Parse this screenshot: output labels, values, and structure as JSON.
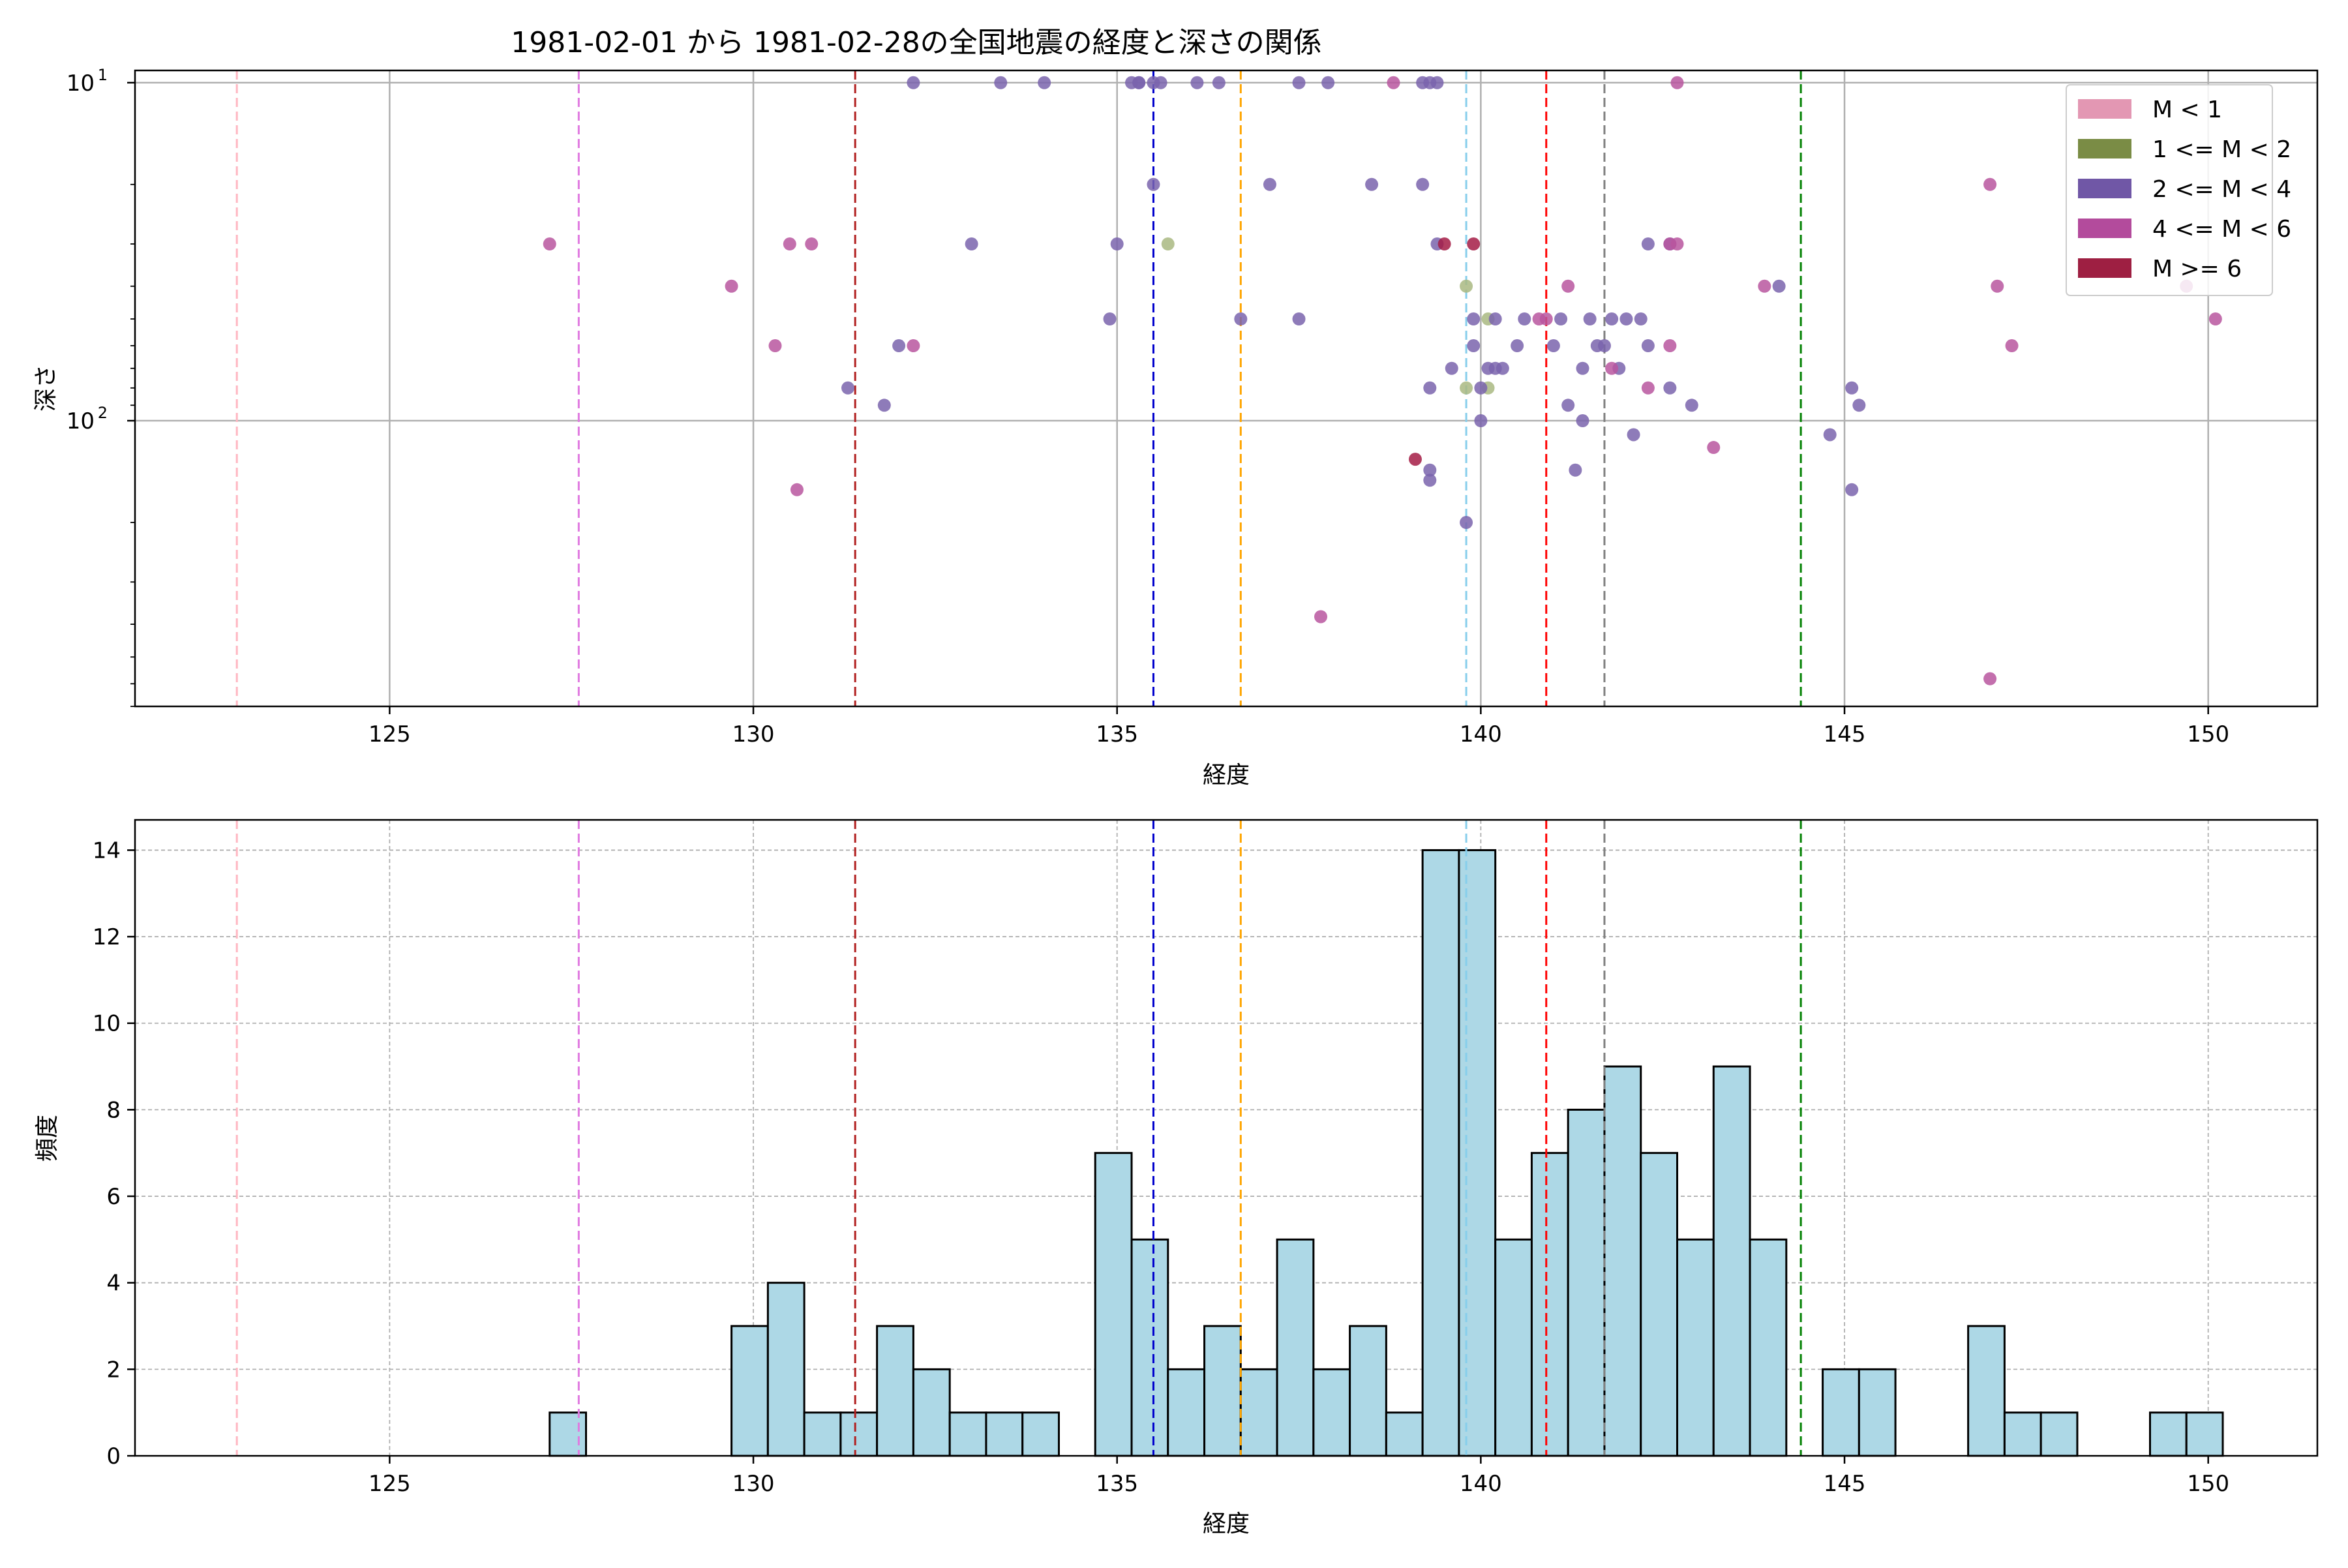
{
  "chart_data": [
    {
      "type": "scatter",
      "title": "1981-02-01 から 1981-02-28の全国地震の経度と深さの関係",
      "xlabel": "経度",
      "ylabel": "深さ",
      "xlim": [
        121.5,
        151.5
      ],
      "ylim": [
        9.2,
        700
      ],
      "yscale": "log",
      "y_inverted": true,
      "x_ticks": [
        125,
        130,
        135,
        140,
        145,
        150
      ],
      "x_tick_labels": [
        "125",
        "130",
        "135",
        "140",
        "145",
        "150"
      ],
      "y_major_ticks": [
        10,
        100
      ],
      "y_tick_base": "10",
      "y_tick_exponents": [
        "1",
        "2"
      ],
      "grid": "major, solid",
      "legend": {
        "position": "top-right",
        "entries": [
          {
            "label": "M < 1",
            "color": "#e397b3"
          },
          {
            "label": "1 <= M < 2",
            "color": "#7a8c45"
          },
          {
            "label": "2 <= M < 4",
            "color": "#7057a6"
          },
          {
            "label": "4 <= M < 6",
            "color": "#b34b9c"
          },
          {
            "label": "M >= 6",
            "color": "#9e1f42"
          }
        ]
      },
      "reference_lines": [
        {
          "x": 122.9,
          "color": "#ffb6c1"
        },
        {
          "x": 127.6,
          "color": "#e07ae0"
        },
        {
          "x": 131.4,
          "color": "#b22222"
        },
        {
          "x": 135.5,
          "color": "#0000cd"
        },
        {
          "x": 136.7,
          "color": "#ffa500"
        },
        {
          "x": 139.8,
          "color": "#87ceeb"
        },
        {
          "x": 140.9,
          "color": "#ff0000"
        },
        {
          "x": 141.7,
          "color": "#808080"
        },
        {
          "x": 144.4,
          "color": "#008000"
        }
      ],
      "series": [
        {
          "name": "1 <= M < 2",
          "color": "#a9b881",
          "points": [
            [
              135.7,
              30
            ],
            [
              139.8,
              40
            ],
            [
              139.8,
              80
            ],
            [
              140.1,
              50
            ],
            [
              140.1,
              80
            ]
          ]
        },
        {
          "name": "2 <= M < 4",
          "color": "#7a64ad",
          "points": [
            [
              132.2,
              10
            ],
            [
              133.4,
              10
            ],
            [
              134.0,
              10
            ],
            [
              135.2,
              10
            ],
            [
              135.3,
              10
            ],
            [
              135.3,
              10
            ],
            [
              135.5,
              10
            ],
            [
              135.6,
              10
            ],
            [
              136.1,
              10
            ],
            [
              136.4,
              10
            ],
            [
              137.5,
              10
            ],
            [
              137.9,
              10
            ],
            [
              139.2,
              10
            ],
            [
              139.3,
              10
            ],
            [
              139.4,
              10
            ],
            [
              135.5,
              20
            ],
            [
              137.1,
              20
            ],
            [
              138.5,
              20
            ],
            [
              139.2,
              20
            ],
            [
              133.0,
              30
            ],
            [
              135.0,
              30
            ],
            [
              139.4,
              30
            ],
            [
              142.3,
              30
            ],
            [
              142.6,
              30
            ],
            [
              134.9,
              50
            ],
            [
              136.7,
              50
            ],
            [
              137.5,
              50
            ],
            [
              139.9,
              50
            ],
            [
              140.2,
              50
            ],
            [
              140.6,
              50
            ],
            [
              141.1,
              50
            ],
            [
              141.5,
              50
            ],
            [
              141.8,
              50
            ],
            [
              142.0,
              50
            ],
            [
              142.2,
              50
            ],
            [
              144.1,
              40
            ],
            [
              132.0,
              60
            ],
            [
              139.9,
              60
            ],
            [
              140.5,
              60
            ],
            [
              141.0,
              60
            ],
            [
              141.6,
              60
            ],
            [
              141.7,
              60
            ],
            [
              142.3,
              60
            ],
            [
              139.6,
              70
            ],
            [
              140.1,
              70
            ],
            [
              140.2,
              70
            ],
            [
              140.3,
              70
            ],
            [
              141.4,
              70
            ],
            [
              141.9,
              70
            ],
            [
              131.3,
              80
            ],
            [
              139.3,
              80
            ],
            [
              140.0,
              80
            ],
            [
              142.6,
              80
            ],
            [
              145.1,
              80
            ],
            [
              131.8,
              90
            ],
            [
              141.2,
              90
            ],
            [
              142.9,
              90
            ],
            [
              145.2,
              90
            ],
            [
              140.0,
              100
            ],
            [
              141.4,
              100
            ],
            [
              142.1,
              110
            ],
            [
              144.8,
              110
            ],
            [
              139.3,
              140
            ],
            [
              141.3,
              140
            ],
            [
              139.3,
              150
            ],
            [
              145.1,
              160
            ],
            [
              139.8,
              200
            ]
          ]
        },
        {
          "name": "4 <= M < 6",
          "color": "#b9569f",
          "points": [
            [
              138.8,
              10
            ],
            [
              142.7,
              10
            ],
            [
              147.0,
              20
            ],
            [
              127.2,
              30
            ],
            [
              130.5,
              30
            ],
            [
              130.8,
              30
            ],
            [
              142.6,
              30
            ],
            [
              142.7,
              30
            ],
            [
              129.7,
              40
            ],
            [
              141.2,
              40
            ],
            [
              143.9,
              40
            ],
            [
              147.1,
              40
            ],
            [
              149.7,
              40
            ],
            [
              140.8,
              50
            ],
            [
              140.9,
              50
            ],
            [
              150.1,
              50
            ],
            [
              130.3,
              60
            ],
            [
              132.2,
              60
            ],
            [
              142.6,
              60
            ],
            [
              147.3,
              60
            ],
            [
              141.8,
              70
            ],
            [
              142.3,
              80
            ],
            [
              143.2,
              120
            ],
            [
              130.6,
              160
            ],
            [
              137.8,
              380
            ],
            [
              147.0,
              580
            ]
          ]
        },
        {
          "name": "M >= 6",
          "color": "#a51c45",
          "points": [
            [
              139.5,
              30
            ],
            [
              139.9,
              30
            ],
            [
              139.1,
              130
            ]
          ]
        }
      ]
    },
    {
      "type": "bar",
      "title": "",
      "xlabel": "経度",
      "ylabel": "頻度",
      "xlim": [
        121.5,
        151.5
      ],
      "ylim": [
        0,
        14.7
      ],
      "x_ticks": [
        125,
        130,
        135,
        140,
        145,
        150
      ],
      "x_tick_labels": [
        "125",
        "130",
        "135",
        "140",
        "145",
        "150"
      ],
      "y_ticks": [
        0,
        2,
        4,
        6,
        8,
        10,
        12,
        14
      ],
      "y_tick_labels": [
        "0",
        "2",
        "4",
        "6",
        "8",
        "10",
        "12",
        "14"
      ],
      "grid": "major, dashed",
      "bar_color": "#add8e6",
      "bin_width": 0.5,
      "bins": [
        [
          127.2,
          1
        ],
        [
          129.7,
          3
        ],
        [
          130.2,
          4
        ],
        [
          130.7,
          1
        ],
        [
          131.2,
          1
        ],
        [
          131.7,
          3
        ],
        [
          132.2,
          2
        ],
        [
          132.7,
          1
        ],
        [
          133.2,
          1
        ],
        [
          133.7,
          1
        ],
        [
          134.7,
          7
        ],
        [
          135.2,
          5
        ],
        [
          135.7,
          2
        ],
        [
          136.2,
          3
        ],
        [
          136.7,
          2
        ],
        [
          137.2,
          5
        ],
        [
          137.7,
          2
        ],
        [
          138.2,
          3
        ],
        [
          138.7,
          1
        ],
        [
          139.2,
          14
        ],
        [
          139.7,
          14
        ],
        [
          140.2,
          5
        ],
        [
          140.7,
          7
        ],
        [
          141.2,
          8
        ],
        [
          141.7,
          9
        ],
        [
          142.2,
          7
        ],
        [
          142.7,
          5
        ],
        [
          143.2,
          9
        ],
        [
          143.7,
          5
        ],
        [
          144.7,
          2
        ],
        [
          145.2,
          2
        ],
        [
          146.7,
          3
        ],
        [
          147.2,
          1
        ],
        [
          147.7,
          1
        ],
        [
          149.2,
          1
        ],
        [
          149.7,
          1
        ]
      ],
      "reference_lines": [
        {
          "x": 122.9,
          "color": "#ffb6c1"
        },
        {
          "x": 127.6,
          "color": "#e07ae0"
        },
        {
          "x": 131.4,
          "color": "#b22222"
        },
        {
          "x": 135.5,
          "color": "#0000cd"
        },
        {
          "x": 136.7,
          "color": "#ffa500"
        },
        {
          "x": 139.8,
          "color": "#87ceeb"
        },
        {
          "x": 140.9,
          "color": "#ff0000"
        },
        {
          "x": 141.7,
          "color": "#808080"
        },
        {
          "x": 144.4,
          "color": "#008000"
        }
      ]
    }
  ]
}
